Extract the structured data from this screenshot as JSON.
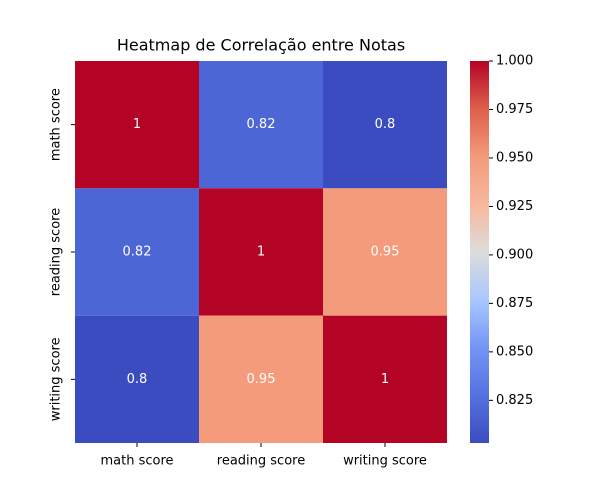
{
  "chart_data": {
    "type": "heatmap",
    "title": "Heatmap de Correlação entre Notas",
    "x_categories": [
      "math score",
      "reading score",
      "writing score"
    ],
    "y_categories": [
      "math score",
      "reading score",
      "writing score"
    ],
    "values": [
      [
        1,
        0.82,
        0.8
      ],
      [
        0.82,
        1,
        0.95
      ],
      [
        0.8,
        0.95,
        1
      ]
    ],
    "colormap": "coolwarm",
    "clim": [
      0.803,
      1
    ],
    "cticks": [
      0.825,
      {
        "value": 0.85,
        "label": "0.850"
      },
      0.875,
      {
        "value": 0.9,
        "label": "0.900"
      },
      0.925,
      {
        "value": 0.95,
        "label": "0.950"
      },
      0.975,
      {
        "value": 1,
        "label": "1.000"
      }
    ]
  }
}
